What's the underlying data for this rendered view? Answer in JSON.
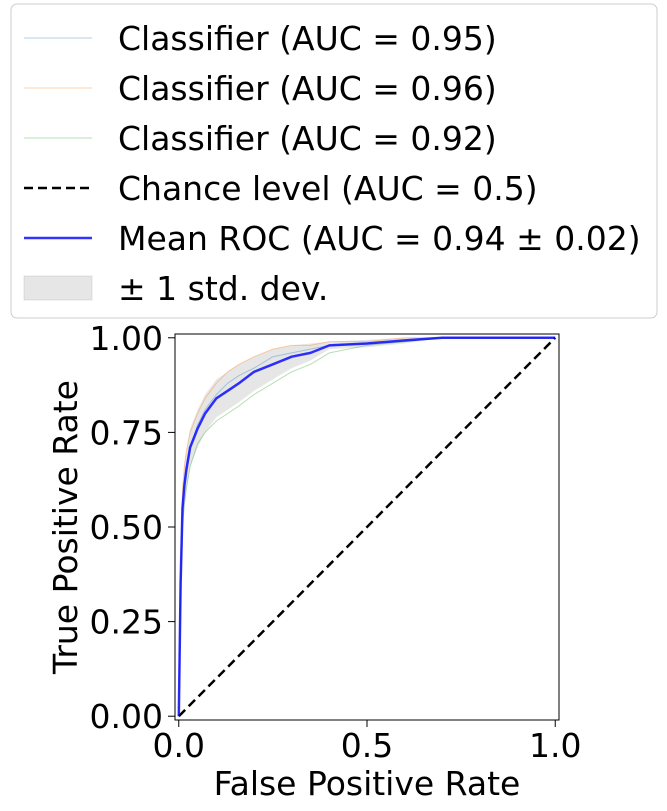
{
  "chart_data": {
    "type": "line",
    "title": "",
    "xlabel": "False Positive Rate",
    "ylabel": "True Positive Rate",
    "xlim": [
      -0.01,
      1.01
    ],
    "ylim": [
      -0.01,
      1.01
    ],
    "grid": false,
    "legend_placement": "top",
    "x_ticks": [
      {
        "value": 0,
        "label": "0.0"
      },
      {
        "value": 0.5,
        "label": "0.5"
      },
      {
        "value": 1,
        "label": "1.0"
      }
    ],
    "y_ticks": [
      {
        "value": 0,
        "label": "0.00"
      },
      {
        "value": 0.25,
        "label": "0.25"
      },
      {
        "value": 0.5,
        "label": "0.50"
      },
      {
        "value": 0.75,
        "label": "0.75"
      },
      {
        "value": 1,
        "label": "1.00"
      }
    ],
    "series": [
      {
        "name": "Classifier (AUC = 0.95)",
        "color": "#1f77b4",
        "style": "solid-thin",
        "x": [
          0,
          0.005,
          0.01,
          0.015,
          0.02,
          0.03,
          0.05,
          0.07,
          0.1,
          0.13,
          0.16,
          0.2,
          0.25,
          0.3,
          0.35,
          0.4,
          0.5,
          0.6,
          0.7,
          0.8,
          0.9,
          1.0
        ],
        "y": [
          0,
          0.3,
          0.55,
          0.62,
          0.66,
          0.71,
          0.77,
          0.81,
          0.85,
          0.88,
          0.9,
          0.92,
          0.95,
          0.96,
          0.97,
          0.98,
          0.985,
          0.99,
          1.0,
          1.0,
          1.0,
          1.0
        ]
      },
      {
        "name": "Classifier (AUC = 0.96)",
        "color": "#ff7f0e",
        "style": "solid-thin",
        "x": [
          0,
          0.005,
          0.01,
          0.015,
          0.02,
          0.03,
          0.05,
          0.07,
          0.1,
          0.13,
          0.16,
          0.2,
          0.25,
          0.3,
          0.35,
          0.4,
          0.5,
          0.6,
          0.7,
          0.8,
          0.9,
          1.0
        ],
        "y": [
          0,
          0.4,
          0.6,
          0.66,
          0.7,
          0.75,
          0.8,
          0.84,
          0.88,
          0.91,
          0.93,
          0.95,
          0.97,
          0.98,
          0.98,
          0.99,
          0.99,
          1.0,
          1.0,
          1.0,
          1.0,
          1.0
        ]
      },
      {
        "name": "Classifier (AUC = 0.92)",
        "color": "#2ca02c",
        "style": "solid-thin",
        "x": [
          0,
          0.005,
          0.01,
          0.015,
          0.02,
          0.03,
          0.05,
          0.07,
          0.1,
          0.13,
          0.16,
          0.2,
          0.25,
          0.3,
          0.35,
          0.4,
          0.5,
          0.6,
          0.7,
          0.8,
          0.9,
          1.0
        ],
        "y": [
          0,
          0.35,
          0.5,
          0.56,
          0.6,
          0.66,
          0.72,
          0.75,
          0.78,
          0.8,
          0.82,
          0.85,
          0.88,
          0.91,
          0.93,
          0.96,
          0.98,
          0.99,
          1.0,
          1.0,
          1.0,
          1.0
        ]
      },
      {
        "name": "Chance level (AUC = 0.5)",
        "color": "#000000",
        "style": "dashed",
        "x": [
          0,
          1
        ],
        "y": [
          0,
          1
        ]
      },
      {
        "name": "Mean ROC (AUC = 0.94 ± 0.02)",
        "color": "#0000ff",
        "style": "solid-thick",
        "x": [
          0,
          0.005,
          0.01,
          0.015,
          0.02,
          0.03,
          0.05,
          0.07,
          0.1,
          0.13,
          0.16,
          0.2,
          0.25,
          0.3,
          0.35,
          0.4,
          0.5,
          0.6,
          0.7,
          0.8,
          0.9,
          1.0
        ],
        "y": [
          0,
          0.35,
          0.55,
          0.61,
          0.65,
          0.71,
          0.76,
          0.8,
          0.84,
          0.86,
          0.88,
          0.91,
          0.93,
          0.95,
          0.96,
          0.98,
          0.985,
          0.993,
          1.0,
          1.0,
          1.0,
          1.0
        ]
      }
    ],
    "band": {
      "name": "± 1 std. dev.",
      "color": "#808080",
      "x": [
        0,
        0.005,
        0.01,
        0.015,
        0.02,
        0.03,
        0.05,
        0.07,
        0.1,
        0.13,
        0.16,
        0.2,
        0.25,
        0.3,
        0.35,
        0.4,
        0.5,
        0.6,
        0.7,
        0.8,
        0.9,
        1.0
      ],
      "upper": [
        0,
        0.4,
        0.6,
        0.67,
        0.7,
        0.76,
        0.81,
        0.85,
        0.89,
        0.91,
        0.93,
        0.95,
        0.97,
        0.98,
        0.985,
        0.99,
        0.995,
        1.0,
        1.0,
        1.0,
        1.0,
        1.0
      ],
      "lower": [
        0,
        0.3,
        0.5,
        0.55,
        0.6,
        0.66,
        0.71,
        0.75,
        0.79,
        0.81,
        0.83,
        0.86,
        0.89,
        0.92,
        0.94,
        0.97,
        0.975,
        0.985,
        1.0,
        1.0,
        1.0,
        1.0
      ]
    }
  }
}
